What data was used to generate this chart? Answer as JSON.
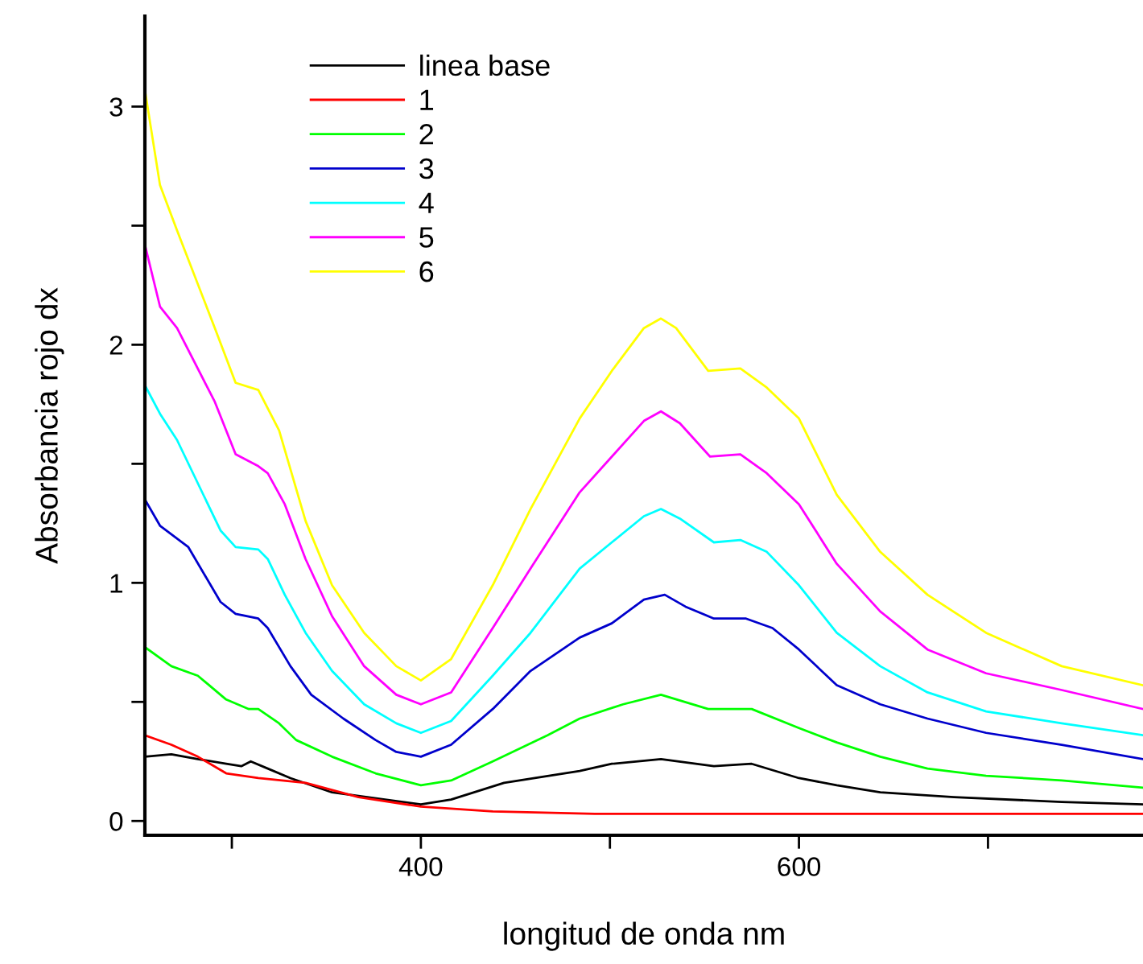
{
  "chart_data": {
    "type": "line",
    "xlabel": "longitud de onda nm",
    "ylabel": "Absorbancia rojo dx",
    "xlim": [
      254,
      782
    ],
    "ylim": [
      -0.06,
      3.38
    ],
    "xticks": [
      {
        "value": 300,
        "label": null
      },
      400,
      {
        "value": 500,
        "label": null
      },
      600,
      {
        "value": 700,
        "label": null
      }
    ],
    "yticks": [
      0,
      {
        "value": 0.5,
        "label": null
      },
      1,
      {
        "value": 1.5,
        "label": null
      },
      2,
      {
        "value": 2.5,
        "label": null
      },
      3
    ],
    "grid": false,
    "legend": "top left",
    "marker": "none",
    "line_style": "solid",
    "series": [
      {
        "name": "linea base",
        "color": "#000000",
        "x": [
          254,
          268,
          282,
          297,
          305,
          310,
          319,
          331,
          353,
          381,
          400,
          416,
          444,
          484,
          501,
          527,
          555,
          575,
          600,
          620,
          643,
          682,
          739,
          782
        ],
        "values": [
          0.27,
          0.28,
          0.26,
          0.24,
          0.23,
          0.25,
          0.22,
          0.18,
          0.12,
          0.09,
          0.07,
          0.09,
          0.16,
          0.21,
          0.24,
          0.26,
          0.23,
          0.24,
          0.18,
          0.15,
          0.12,
          0.1,
          0.08,
          0.07
        ]
      },
      {
        "name": "1",
        "color": "#ff0000",
        "x": [
          254,
          268,
          282,
          297,
          314,
          339,
          367,
          400,
          438,
          492,
          600,
          700,
          782
        ],
        "values": [
          0.36,
          0.32,
          0.27,
          0.2,
          0.18,
          0.16,
          0.1,
          0.06,
          0.04,
          0.03,
          0.03,
          0.03,
          0.03
        ]
      },
      {
        "name": "2",
        "color": "#00ff00",
        "x": [
          254,
          268,
          282,
          297,
          309,
          314,
          325,
          334,
          353,
          376,
          400,
          416,
          438,
          467,
          484,
          507,
          527,
          552,
          575,
          600,
          620,
          643,
          668,
          699,
          739,
          782
        ],
        "values": [
          0.73,
          0.65,
          0.61,
          0.51,
          0.47,
          0.47,
          0.41,
          0.34,
          0.27,
          0.2,
          0.15,
          0.17,
          0.25,
          0.36,
          0.43,
          0.49,
          0.53,
          0.47,
          0.47,
          0.39,
          0.33,
          0.27,
          0.22,
          0.19,
          0.17,
          0.14
        ]
      },
      {
        "name": "3",
        "color": "#0000cc",
        "x": [
          254,
          262,
          277,
          294,
          302,
          314,
          319,
          331,
          342,
          359,
          376,
          387,
          400,
          416,
          438,
          458,
          484,
          501,
          518,
          529,
          540,
          555,
          572,
          586,
          600,
          620,
          643,
          668,
          699,
          739,
          782
        ],
        "values": [
          1.35,
          1.24,
          1.15,
          0.92,
          0.87,
          0.85,
          0.81,
          0.65,
          0.53,
          0.43,
          0.34,
          0.29,
          0.27,
          0.32,
          0.47,
          0.63,
          0.77,
          0.83,
          0.93,
          0.95,
          0.9,
          0.85,
          0.85,
          0.81,
          0.72,
          0.57,
          0.49,
          0.43,
          0.37,
          0.32,
          0.26
        ]
      },
      {
        "name": "4",
        "color": "#00ffff",
        "x": [
          254,
          262,
          271,
          294,
          302,
          314,
          319,
          328,
          339,
          353,
          370,
          387,
          400,
          416,
          438,
          458,
          484,
          501,
          518,
          527,
          537,
          555,
          569,
          583,
          600,
          620,
          643,
          668,
          699,
          739,
          782
        ],
        "values": [
          1.83,
          1.71,
          1.6,
          1.22,
          1.15,
          1.14,
          1.1,
          0.95,
          0.79,
          0.63,
          0.49,
          0.41,
          0.37,
          0.42,
          0.61,
          0.79,
          1.06,
          1.17,
          1.28,
          1.31,
          1.27,
          1.17,
          1.18,
          1.13,
          0.99,
          0.79,
          0.65,
          0.54,
          0.46,
          0.41,
          0.36
        ]
      },
      {
        "name": "5",
        "color": "#ff00ff",
        "x": [
          254,
          262,
          271,
          291,
          302,
          314,
          319,
          328,
          339,
          353,
          370,
          387,
          400,
          416,
          438,
          458,
          484,
          501,
          518,
          527,
          537,
          553,
          569,
          583,
          600,
          620,
          643,
          668,
          699,
          739,
          782
        ],
        "values": [
          2.42,
          2.16,
          2.07,
          1.76,
          1.54,
          1.49,
          1.46,
          1.33,
          1.1,
          0.86,
          0.65,
          0.53,
          0.49,
          0.54,
          0.81,
          1.06,
          1.38,
          1.53,
          1.68,
          1.72,
          1.67,
          1.53,
          1.54,
          1.46,
          1.33,
          1.08,
          0.88,
          0.72,
          0.62,
          0.55,
          0.47
        ]
      },
      {
        "name": "6",
        "color": "#ffff00",
        "x": [
          254,
          262,
          271,
          291,
          302,
          314,
          325,
          339,
          353,
          370,
          387,
          400,
          416,
          438,
          458,
          484,
          501,
          518,
          527,
          535,
          552,
          569,
          583,
          600,
          620,
          643,
          668,
          699,
          739,
          782
        ],
        "values": [
          3.07,
          2.67,
          2.48,
          2.07,
          1.84,
          1.81,
          1.64,
          1.26,
          0.99,
          0.79,
          0.65,
          0.59,
          0.68,
          0.99,
          1.31,
          1.69,
          1.89,
          2.07,
          2.11,
          2.07,
          1.89,
          1.9,
          1.82,
          1.69,
          1.37,
          1.13,
          0.95,
          0.79,
          0.65,
          0.57
        ]
      }
    ]
  }
}
